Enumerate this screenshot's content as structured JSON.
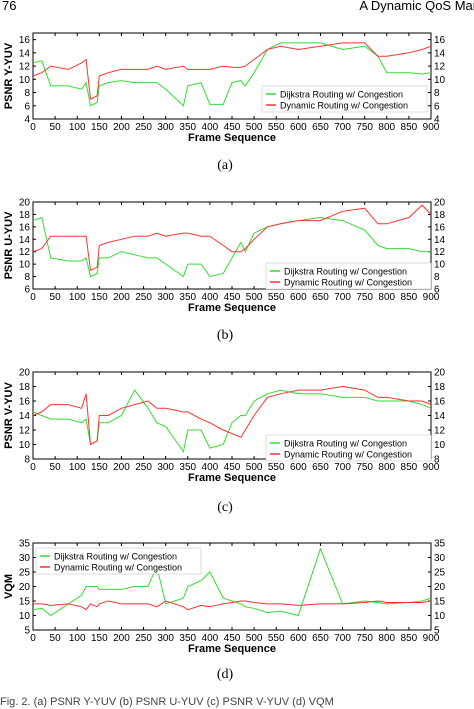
{
  "page": {
    "header_left": "76",
    "header_right": "A Dynamic QoS Man",
    "footer": "Fig. 2. (a) PSNR Y-YUV (b) PSNR U-YUV (c) PSNR V-YUV (d) VQM"
  },
  "colors": {
    "series_a": "#33dd33",
    "series_b": "#ff3333",
    "axis": "#000000"
  },
  "chart_data": [
    {
      "type": "line",
      "caption": "(a)",
      "xlabel": "Frame Sequence",
      "ylabel": "PSNR Y-YUV",
      "xlim": [
        0,
        900
      ],
      "ylim": [
        4,
        17
      ],
      "xticks": [
        0,
        50,
        100,
        150,
        200,
        250,
        300,
        350,
        400,
        450,
        500,
        550,
        600,
        650,
        700,
        750,
        800,
        850,
        900
      ],
      "yticks": [
        4,
        6,
        8,
        10,
        12,
        14,
        16
      ],
      "legend_position": "lower-right",
      "series": [
        {
          "name": "Dijkstra Routing w/ Congestion",
          "x": [
            0,
            20,
            40,
            80,
            110,
            120,
            130,
            145,
            150,
            170,
            200,
            230,
            260,
            280,
            300,
            340,
            350,
            380,
            400,
            430,
            450,
            470,
            480,
            500,
            530,
            560,
            600,
            650,
            700,
            750,
            780,
            800,
            850,
            880,
            900
          ],
          "y": [
            12.5,
            12.8,
            9,
            9,
            8.5,
            9.5,
            6,
            6.5,
            9,
            9.5,
            9.8,
            9.5,
            9.5,
            9.5,
            8.5,
            6,
            9,
            9.5,
            6.2,
            6.2,
            9.5,
            9.8,
            9,
            11,
            14.5,
            15.5,
            15.5,
            15.5,
            14.5,
            15,
            13.5,
            11,
            11,
            10.8,
            11
          ]
        },
        {
          "name": "Dynamic Routing w/ Congestion",
          "x": [
            0,
            20,
            40,
            80,
            110,
            120,
            130,
            145,
            150,
            170,
            200,
            230,
            260,
            280,
            300,
            340,
            350,
            380,
            400,
            430,
            450,
            470,
            480,
            500,
            530,
            560,
            600,
            650,
            700,
            750,
            780,
            800,
            850,
            880,
            900
          ],
          "y": [
            10.5,
            11,
            12,
            11.5,
            12.5,
            13,
            7,
            7.5,
            10.5,
            11,
            11.5,
            11.5,
            11.5,
            12,
            11.5,
            12,
            11.5,
            11.5,
            11.5,
            12,
            11.8,
            11.8,
            12,
            13,
            14.5,
            15,
            14.5,
            15,
            15.5,
            15.5,
            13.5,
            13.5,
            14,
            14.5,
            15
          ]
        }
      ]
    },
    {
      "type": "line",
      "caption": "(b)",
      "xlabel": "Frame Sequence",
      "ylabel": "PSNR U-YUV",
      "xlim": [
        0,
        900
      ],
      "ylim": [
        6,
        20
      ],
      "xticks": [
        0,
        50,
        100,
        150,
        200,
        250,
        300,
        350,
        400,
        450,
        500,
        550,
        600,
        650,
        700,
        750,
        800,
        850,
        900
      ],
      "yticks": [
        6,
        8,
        10,
        12,
        14,
        16,
        18,
        20
      ],
      "legend_position": "lower-right",
      "series": [
        {
          "name": "Dijkstra Routing w/ Congestion",
          "x": [
            0,
            20,
            40,
            80,
            110,
            120,
            130,
            145,
            150,
            170,
            200,
            230,
            260,
            280,
            300,
            340,
            350,
            380,
            400,
            430,
            450,
            470,
            480,
            500,
            530,
            560,
            600,
            650,
            700,
            750,
            780,
            800,
            850,
            880,
            900
          ],
          "y": [
            17,
            17.5,
            11,
            10.5,
            10.5,
            11,
            8,
            8.5,
            11,
            11,
            12,
            11.5,
            11,
            11,
            10,
            8,
            10,
            10,
            8,
            8.5,
            11,
            13.5,
            12,
            15,
            16,
            16.5,
            17,
            17.5,
            17,
            15.5,
            13,
            12.5,
            12.5,
            12,
            12
          ]
        },
        {
          "name": "Dynamic Routing w/ Congestion",
          "x": [
            0,
            20,
            40,
            80,
            110,
            120,
            130,
            145,
            150,
            170,
            200,
            230,
            260,
            280,
            300,
            340,
            350,
            380,
            400,
            430,
            450,
            470,
            480,
            500,
            530,
            560,
            600,
            650,
            700,
            750,
            780,
            800,
            850,
            880,
            900
          ],
          "y": [
            12,
            12.5,
            14.5,
            14.5,
            14.5,
            14.5,
            9,
            9.5,
            13,
            13.5,
            14,
            14.5,
            14.5,
            15,
            14.5,
            15,
            15,
            14.5,
            14.5,
            13,
            12,
            12,
            12.5,
            14,
            16,
            16.5,
            17,
            17,
            18.5,
            19,
            16.5,
            16.5,
            17.5,
            19.5,
            18
          ]
        }
      ]
    },
    {
      "type": "line",
      "caption": "(c)",
      "xlabel": "Frame Sequence",
      "ylabel": "PSNR V-YUV",
      "xlim": [
        0,
        900
      ],
      "ylim": [
        8,
        20
      ],
      "xticks": [
        0,
        50,
        100,
        150,
        200,
        250,
        300,
        350,
        400,
        450,
        500,
        550,
        600,
        650,
        700,
        750,
        800,
        850,
        900
      ],
      "yticks": [
        8,
        10,
        12,
        14,
        16,
        18,
        20
      ],
      "legend_position": "lower-right",
      "series": [
        {
          "name": "Dijkstra Routing w/ Congestion",
          "x": [
            0,
            20,
            40,
            80,
            110,
            120,
            130,
            145,
            150,
            170,
            200,
            230,
            260,
            280,
            300,
            340,
            350,
            380,
            400,
            430,
            450,
            470,
            480,
            500,
            530,
            560,
            600,
            650,
            700,
            750,
            780,
            800,
            850,
            880,
            900
          ],
          "y": [
            14.5,
            14,
            13.5,
            13.5,
            13,
            13.5,
            10,
            10.5,
            13,
            13,
            14,
            17.5,
            15,
            13,
            12.5,
            9,
            12,
            12,
            9.5,
            10,
            13,
            14,
            14,
            16,
            17,
            17.5,
            17,
            17,
            16.5,
            16.5,
            16,
            16,
            16,
            15.5,
            15
          ]
        },
        {
          "name": "Dynamic Routing w/ Congestion",
          "x": [
            0,
            20,
            40,
            80,
            110,
            120,
            130,
            145,
            150,
            170,
            200,
            230,
            260,
            280,
            300,
            340,
            350,
            380,
            400,
            430,
            450,
            470,
            480,
            500,
            530,
            560,
            600,
            650,
            700,
            750,
            780,
            800,
            850,
            880,
            900
          ],
          "y": [
            14,
            14.5,
            15.5,
            15.5,
            15,
            17,
            10,
            10.5,
            14,
            14,
            15,
            15.5,
            16,
            15,
            15,
            14.5,
            14.5,
            13.5,
            13,
            12,
            11.5,
            11,
            12,
            14,
            16.5,
            17,
            17.5,
            17.5,
            18,
            17.5,
            16.5,
            16.5,
            16,
            16,
            15.5
          ]
        }
      ]
    },
    {
      "type": "line",
      "caption": "(d)",
      "xlabel": "Frame Sequence",
      "ylabel": "VQM",
      "xlim": [
        0,
        900
      ],
      "ylim": [
        5,
        35
      ],
      "xticks": [
        0,
        50,
        100,
        150,
        200,
        250,
        300,
        350,
        400,
        450,
        500,
        550,
        600,
        650,
        700,
        750,
        800,
        850,
        900
      ],
      "yticks": [
        5,
        10,
        15,
        20,
        25,
        30,
        35
      ],
      "legend_position": "upper-left",
      "series": [
        {
          "name": "Dijkstra Routing w/ Congestion",
          "x": [
            0,
            20,
            40,
            80,
            110,
            120,
            130,
            145,
            150,
            170,
            200,
            230,
            260,
            280,
            300,
            340,
            350,
            380,
            400,
            430,
            450,
            470,
            480,
            500,
            530,
            560,
            600,
            650,
            700,
            750,
            780,
            800,
            850,
            880,
            900
          ],
          "y": [
            12,
            12.5,
            10,
            14,
            17,
            20,
            20,
            20,
            19,
            19,
            19,
            20,
            20,
            27,
            14,
            16,
            20,
            22,
            25,
            16,
            15,
            14,
            13,
            12.5,
            11,
            11.5,
            10,
            33,
            14,
            15,
            14.5,
            14,
            14.5,
            15,
            16
          ]
        },
        {
          "name": "Dynamic Routing w/ Congestion",
          "x": [
            0,
            20,
            40,
            80,
            110,
            120,
            130,
            145,
            150,
            170,
            200,
            230,
            260,
            280,
            300,
            340,
            350,
            380,
            400,
            430,
            450,
            470,
            480,
            500,
            530,
            560,
            600,
            650,
            700,
            750,
            780,
            800,
            850,
            880,
            900
          ],
          "y": [
            14,
            14,
            13.5,
            14,
            13,
            12,
            14,
            13,
            14,
            15,
            14,
            14,
            14,
            13,
            15,
            13,
            12,
            13.5,
            13,
            14,
            14.5,
            15,
            15,
            14.5,
            14,
            14,
            13.5,
            14,
            14,
            14.5,
            15,
            14.5,
            14.5,
            14.5,
            15
          ]
        }
      ]
    }
  ]
}
